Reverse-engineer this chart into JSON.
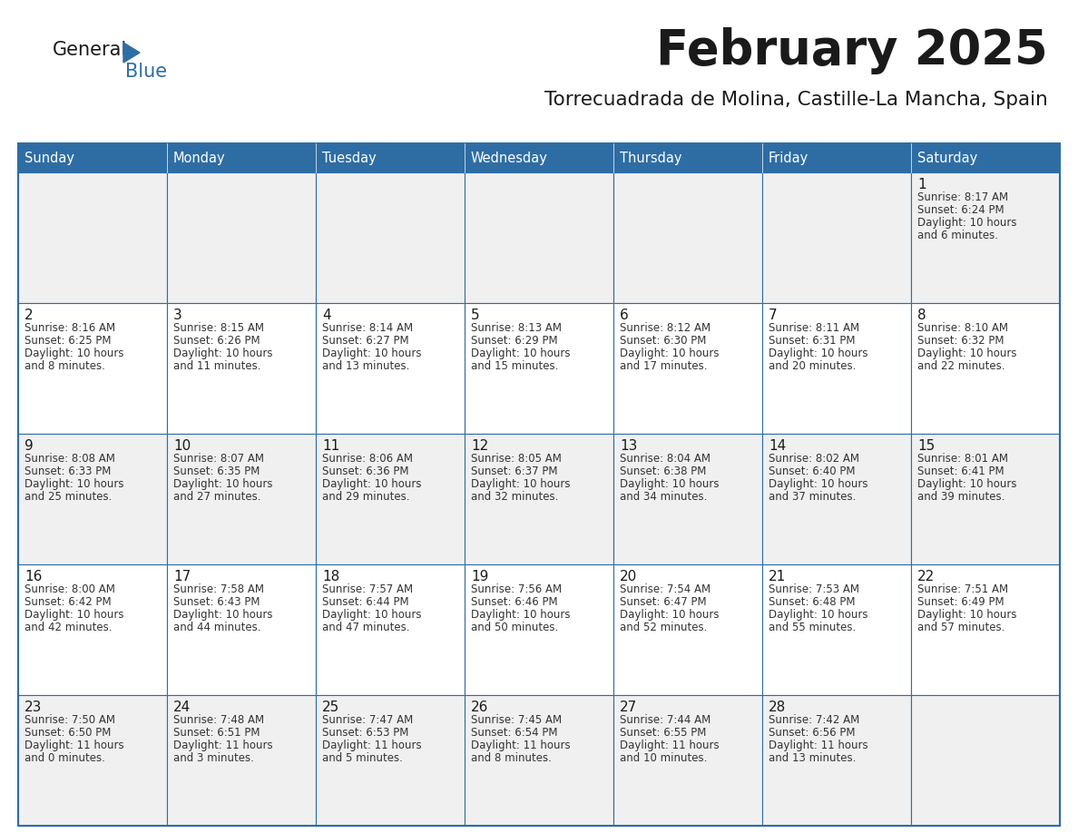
{
  "title": "February 2025",
  "subtitle": "Torrecuadrada de Molina, Castille-La Mancha, Spain",
  "header_bg": "#2E6DA4",
  "header_text": "#FFFFFF",
  "cell_bg_light": "#F0F0F0",
  "cell_bg_white": "#FFFFFF",
  "border_color": "#2E6DA4",
  "day_headers": [
    "Sunday",
    "Monday",
    "Tuesday",
    "Wednesday",
    "Thursday",
    "Friday",
    "Saturday"
  ],
  "title_color": "#1a1a1a",
  "subtitle_color": "#1a1a1a",
  "text_color": "#333333",
  "days": [
    {
      "day": 1,
      "col": 6,
      "row": 0,
      "sunrise": "8:17 AM",
      "sunset": "6:24 PM",
      "daylight_hours": 10,
      "daylight_minutes": 6
    },
    {
      "day": 2,
      "col": 0,
      "row": 1,
      "sunrise": "8:16 AM",
      "sunset": "6:25 PM",
      "daylight_hours": 10,
      "daylight_minutes": 8
    },
    {
      "day": 3,
      "col": 1,
      "row": 1,
      "sunrise": "8:15 AM",
      "sunset": "6:26 PM",
      "daylight_hours": 10,
      "daylight_minutes": 11
    },
    {
      "day": 4,
      "col": 2,
      "row": 1,
      "sunrise": "8:14 AM",
      "sunset": "6:27 PM",
      "daylight_hours": 10,
      "daylight_minutes": 13
    },
    {
      "day": 5,
      "col": 3,
      "row": 1,
      "sunrise": "8:13 AM",
      "sunset": "6:29 PM",
      "daylight_hours": 10,
      "daylight_minutes": 15
    },
    {
      "day": 6,
      "col": 4,
      "row": 1,
      "sunrise": "8:12 AM",
      "sunset": "6:30 PM",
      "daylight_hours": 10,
      "daylight_minutes": 17
    },
    {
      "day": 7,
      "col": 5,
      "row": 1,
      "sunrise": "8:11 AM",
      "sunset": "6:31 PM",
      "daylight_hours": 10,
      "daylight_minutes": 20
    },
    {
      "day": 8,
      "col": 6,
      "row": 1,
      "sunrise": "8:10 AM",
      "sunset": "6:32 PM",
      "daylight_hours": 10,
      "daylight_minutes": 22
    },
    {
      "day": 9,
      "col": 0,
      "row": 2,
      "sunrise": "8:08 AM",
      "sunset": "6:33 PM",
      "daylight_hours": 10,
      "daylight_minutes": 25
    },
    {
      "day": 10,
      "col": 1,
      "row": 2,
      "sunrise": "8:07 AM",
      "sunset": "6:35 PM",
      "daylight_hours": 10,
      "daylight_minutes": 27
    },
    {
      "day": 11,
      "col": 2,
      "row": 2,
      "sunrise": "8:06 AM",
      "sunset": "6:36 PM",
      "daylight_hours": 10,
      "daylight_minutes": 29
    },
    {
      "day": 12,
      "col": 3,
      "row": 2,
      "sunrise": "8:05 AM",
      "sunset": "6:37 PM",
      "daylight_hours": 10,
      "daylight_minutes": 32
    },
    {
      "day": 13,
      "col": 4,
      "row": 2,
      "sunrise": "8:04 AM",
      "sunset": "6:38 PM",
      "daylight_hours": 10,
      "daylight_minutes": 34
    },
    {
      "day": 14,
      "col": 5,
      "row": 2,
      "sunrise": "8:02 AM",
      "sunset": "6:40 PM",
      "daylight_hours": 10,
      "daylight_minutes": 37
    },
    {
      "day": 15,
      "col": 6,
      "row": 2,
      "sunrise": "8:01 AM",
      "sunset": "6:41 PM",
      "daylight_hours": 10,
      "daylight_minutes": 39
    },
    {
      "day": 16,
      "col": 0,
      "row": 3,
      "sunrise": "8:00 AM",
      "sunset": "6:42 PM",
      "daylight_hours": 10,
      "daylight_minutes": 42
    },
    {
      "day": 17,
      "col": 1,
      "row": 3,
      "sunrise": "7:58 AM",
      "sunset": "6:43 PM",
      "daylight_hours": 10,
      "daylight_minutes": 44
    },
    {
      "day": 18,
      "col": 2,
      "row": 3,
      "sunrise": "7:57 AM",
      "sunset": "6:44 PM",
      "daylight_hours": 10,
      "daylight_minutes": 47
    },
    {
      "day": 19,
      "col": 3,
      "row": 3,
      "sunrise": "7:56 AM",
      "sunset": "6:46 PM",
      "daylight_hours": 10,
      "daylight_minutes": 50
    },
    {
      "day": 20,
      "col": 4,
      "row": 3,
      "sunrise": "7:54 AM",
      "sunset": "6:47 PM",
      "daylight_hours": 10,
      "daylight_minutes": 52
    },
    {
      "day": 21,
      "col": 5,
      "row": 3,
      "sunrise": "7:53 AM",
      "sunset": "6:48 PM",
      "daylight_hours": 10,
      "daylight_minutes": 55
    },
    {
      "day": 22,
      "col": 6,
      "row": 3,
      "sunrise": "7:51 AM",
      "sunset": "6:49 PM",
      "daylight_hours": 10,
      "daylight_minutes": 57
    },
    {
      "day": 23,
      "col": 0,
      "row": 4,
      "sunrise": "7:50 AM",
      "sunset": "6:50 PM",
      "daylight_hours": 11,
      "daylight_minutes": 0
    },
    {
      "day": 24,
      "col": 1,
      "row": 4,
      "sunrise": "7:48 AM",
      "sunset": "6:51 PM",
      "daylight_hours": 11,
      "daylight_minutes": 3
    },
    {
      "day": 25,
      "col": 2,
      "row": 4,
      "sunrise": "7:47 AM",
      "sunset": "6:53 PM",
      "daylight_hours": 11,
      "daylight_minutes": 5
    },
    {
      "day": 26,
      "col": 3,
      "row": 4,
      "sunrise": "7:45 AM",
      "sunset": "6:54 PM",
      "daylight_hours": 11,
      "daylight_minutes": 8
    },
    {
      "day": 27,
      "col": 4,
      "row": 4,
      "sunrise": "7:44 AM",
      "sunset": "6:55 PM",
      "daylight_hours": 11,
      "daylight_minutes": 10
    },
    {
      "day": 28,
      "col": 5,
      "row": 4,
      "sunrise": "7:42 AM",
      "sunset": "6:56 PM",
      "daylight_hours": 11,
      "daylight_minutes": 13
    }
  ],
  "num_rows": 5,
  "num_cols": 7,
  "logo_text_general": "General",
  "logo_text_blue": "Blue",
  "logo_color_general": "#1a1a1a",
  "logo_color_blue": "#2E6DA4",
  "logo_triangle_color": "#2E6DA4"
}
